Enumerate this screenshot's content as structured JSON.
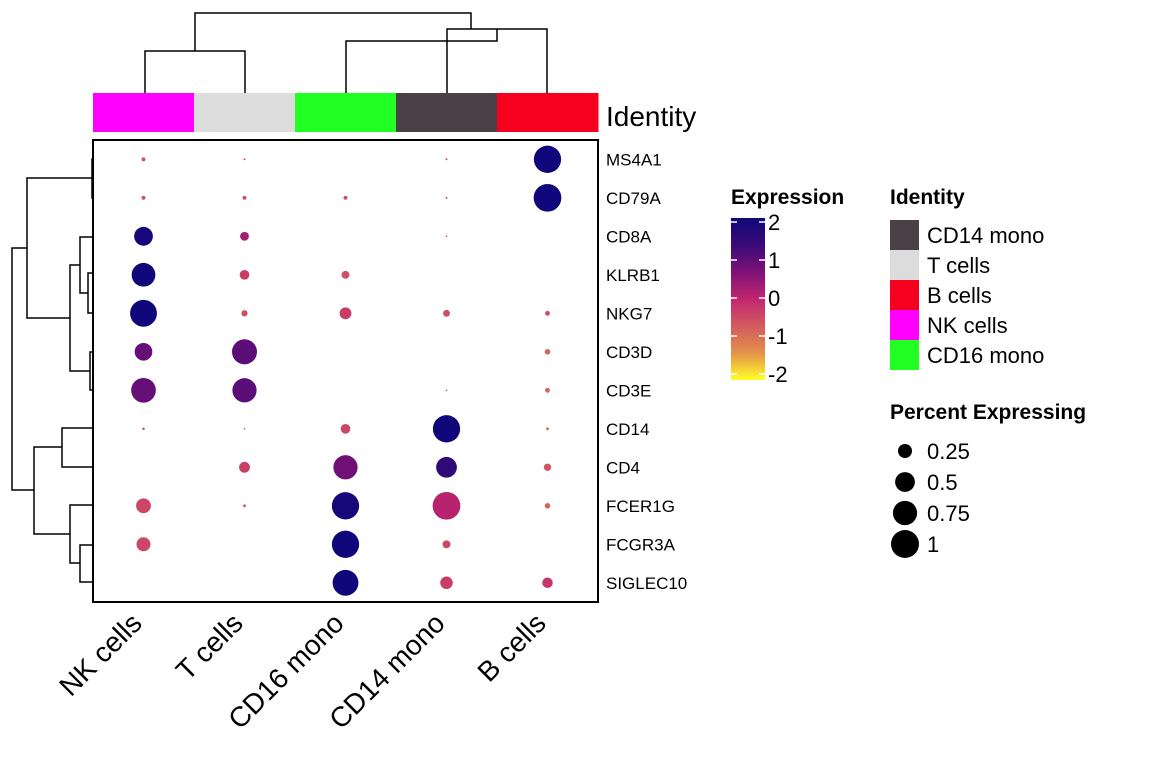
{
  "chart_data": {
    "type": "dotplot",
    "columns": [
      "NK cells",
      "T cells",
      "CD16 mono",
      "CD14 mono",
      "B cells"
    ],
    "rows": [
      "MS4A1",
      "CD79A",
      "CD8A",
      "KLRB1",
      "NKG7",
      "CD3D",
      "CD3E",
      "CD14",
      "CD4",
      "FCER1G",
      "FCGR3A",
      "SIGLEC10"
    ],
    "annotation_title": "Identity",
    "column_colors": [
      "#FF00FF",
      "#DCDCDC",
      "#22FF22",
      "#4A4045",
      "#F5001E"
    ],
    "percent": [
      [
        0.02,
        0.005,
        0,
        0.005,
        0.95
      ],
      [
        0.02,
        0.02,
        0.02,
        0.005,
        0.98
      ],
      [
        0.45,
        0.1,
        0,
        0.003,
        0
      ],
      [
        0.72,
        0.12,
        0.08,
        0,
        0
      ],
      [
        0.92,
        0.05,
        0.18,
        0.06,
        0.03
      ],
      [
        0.4,
        0.8,
        0,
        0,
        0.04
      ],
      [
        0.78,
        0.75,
        0,
        0.002,
        0.03
      ],
      [
        0.008,
        0.003,
        0.12,
        0.95,
        0.01
      ],
      [
        0,
        0.15,
        0.75,
        0.55,
        0.07
      ],
      [
        0.28,
        0.01,
        0.95,
        0.98,
        0.04
      ],
      [
        0.25,
        0,
        0.95,
        0.08,
        0
      ],
      [
        0,
        0,
        0.85,
        0.2,
        0.14
      ]
    ],
    "expression": [
      [
        -0.5,
        -0.5,
        null,
        -0.5,
        2.0
      ],
      [
        -0.5,
        -0.5,
        -0.5,
        -0.5,
        2.0
      ],
      [
        1.9,
        0.3,
        null,
        -0.5,
        null
      ],
      [
        2.0,
        -0.3,
        -0.5,
        null,
        null
      ],
      [
        2.0,
        -0.5,
        -0.3,
        -0.5,
        -0.5
      ],
      [
        0.9,
        1.0,
        null,
        null,
        -0.8
      ],
      [
        0.9,
        1.0,
        null,
        -0.5,
        -0.8
      ],
      [
        -0.5,
        -0.5,
        -0.4,
        2.0,
        -0.8
      ],
      [
        null,
        -0.3,
        0.8,
        1.5,
        -0.6
      ],
      [
        -0.4,
        -0.5,
        1.9,
        0.1,
        -0.8
      ],
      [
        -0.4,
        null,
        2.0,
        -0.4,
        null
      ],
      [
        null,
        null,
        2.0,
        -0.3,
        -0.2
      ]
    ],
    "color_legend": {
      "title": "Expression",
      "ticks": [
        "2",
        "1",
        "0",
        "-1",
        "-2"
      ],
      "range": [
        -2,
        2
      ],
      "stops": [
        "#FFFF26",
        "#E4914A",
        "#D35B5F",
        "#C1266E",
        "#7E1277",
        "#3A0A78",
        "#10087A"
      ]
    },
    "identity_legend": {
      "title": "Identity",
      "items": [
        {
          "label": "CD14 mono",
          "color": "#4A4045"
        },
        {
          "label": "T cells",
          "color": "#DCDCDC"
        },
        {
          "label": "B cells",
          "color": "#F5001E"
        },
        {
          "label": "NK cells",
          "color": "#FF00FF"
        },
        {
          "label": "CD16 mono",
          "color": "#22FF22"
        }
      ]
    },
    "size_legend": {
      "title": "Percent Expressing",
      "items": [
        {
          "label": "0.25",
          "value": 0.25
        },
        {
          "label": "0.5",
          "value": 0.5
        },
        {
          "label": "0.75",
          "value": 0.75
        },
        {
          "label": "1",
          "value": 1
        }
      ]
    }
  }
}
